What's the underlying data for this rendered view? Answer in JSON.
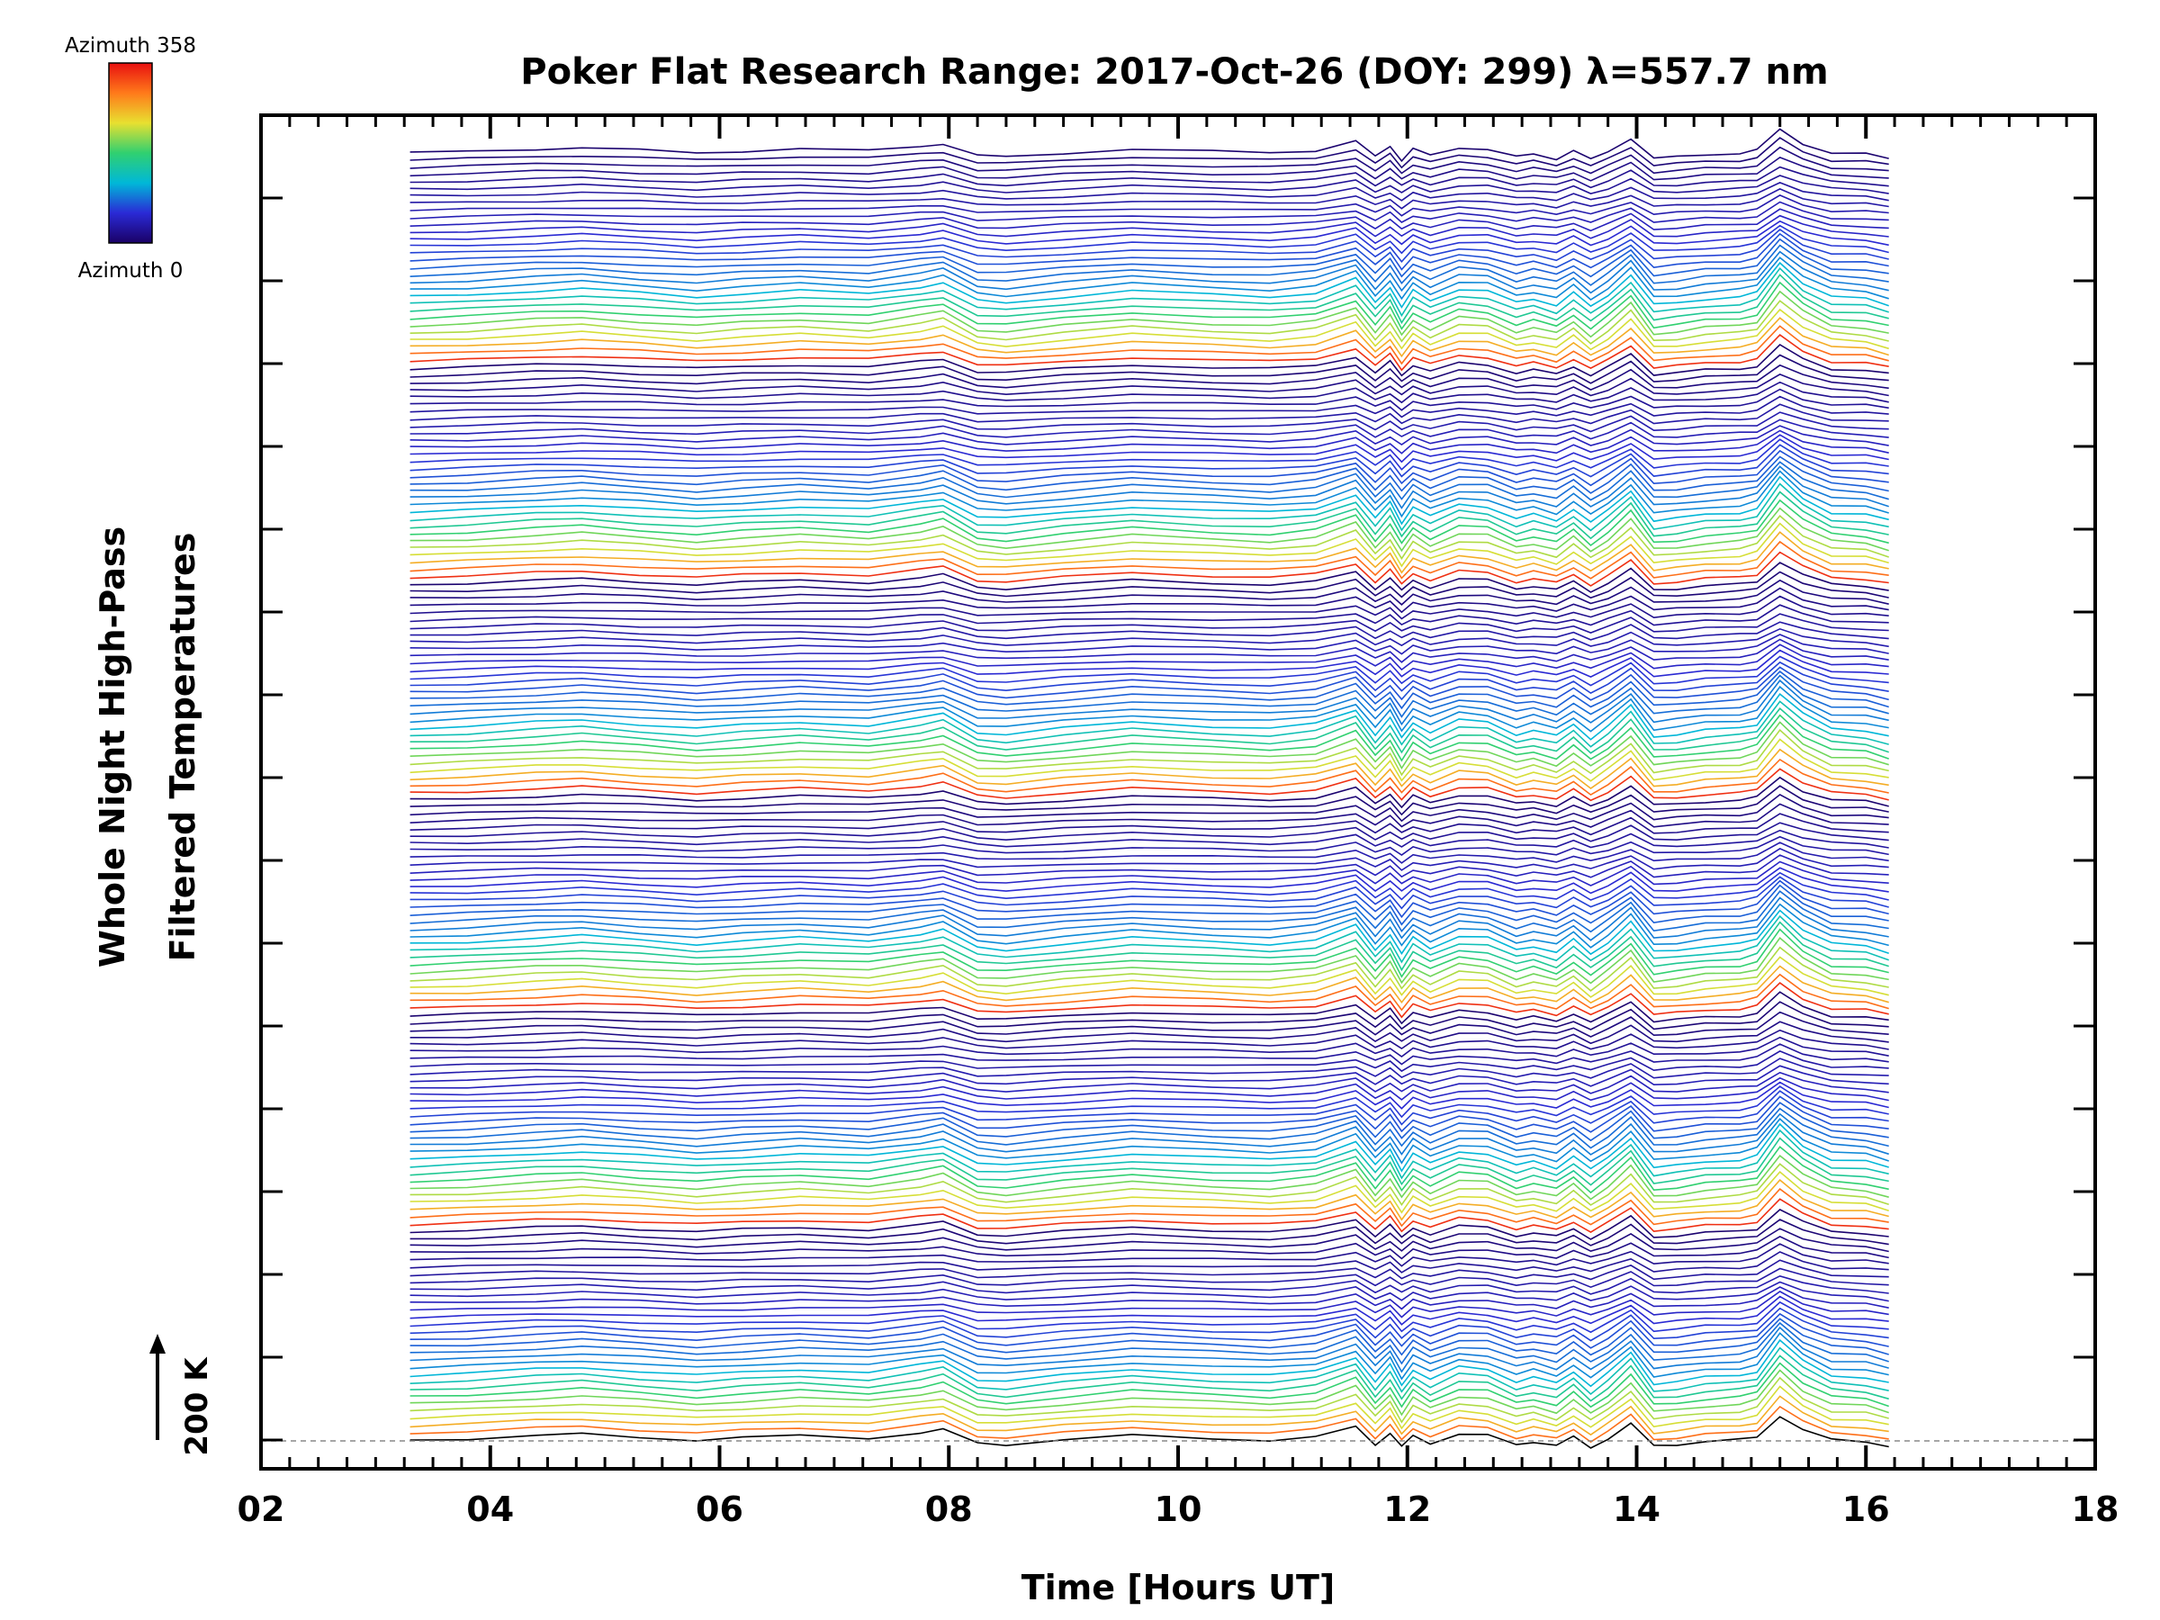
{
  "chart_data": {
    "type": "line",
    "title": "Poker Flat Research Range: 2017-Oct-26 (DOY: 299) λ=557.7 nm",
    "xlabel": "Time [Hours UT]",
    "ylabel": "Whole Night High-Pass",
    "ylabel2": "Filtered Temperatures",
    "xlim": [
      2,
      18
    ],
    "x_tick_labels": [
      "02",
      "04",
      "06",
      "08",
      "10",
      "12",
      "14",
      "16",
      "18"
    ],
    "x_range_data": [
      3.3,
      16.2
    ],
    "colorbar": {
      "top_label": "Azimuth 358",
      "bottom_label": "Azimuth 0",
      "colormap": "rainbow",
      "colors": [
        "#1a0066",
        "#2a2ad6",
        "#00b8d8",
        "#30d070",
        "#e8e030",
        "#ff7a1a",
        "#e81010"
      ]
    },
    "scale_bar_label": "200 K",
    "series_count": 180,
    "azimuth_range": [
      0,
      358
    ],
    "typical_profile": {
      "x": [
        3.3,
        3.8,
        4.4,
        4.8,
        5.3,
        5.8,
        6.2,
        6.7,
        7.3,
        7.75,
        7.95,
        8.25,
        8.5,
        9.0,
        9.6,
        10.3,
        10.8,
        11.2,
        11.55,
        11.72,
        11.85,
        11.95,
        12.05,
        12.2,
        12.45,
        12.7,
        12.95,
        13.1,
        13.3,
        13.45,
        13.6,
        13.75,
        13.95,
        14.15,
        14.35,
        14.6,
        14.9,
        15.05,
        15.25,
        15.45,
        15.7,
        16.0,
        16.2
      ],
      "y": [
        0,
        2,
        6,
        8,
        4,
        0,
        3,
        6,
        3,
        10,
        14,
        -4,
        -6,
        0,
        6,
        2,
        0,
        4,
        18,
        -6,
        10,
        -10,
        6,
        -4,
        8,
        6,
        -6,
        -2,
        -8,
        4,
        -10,
        2,
        22,
        -8,
        -6,
        -2,
        0,
        4,
        34,
        14,
        0,
        -2,
        -8
      ]
    }
  }
}
